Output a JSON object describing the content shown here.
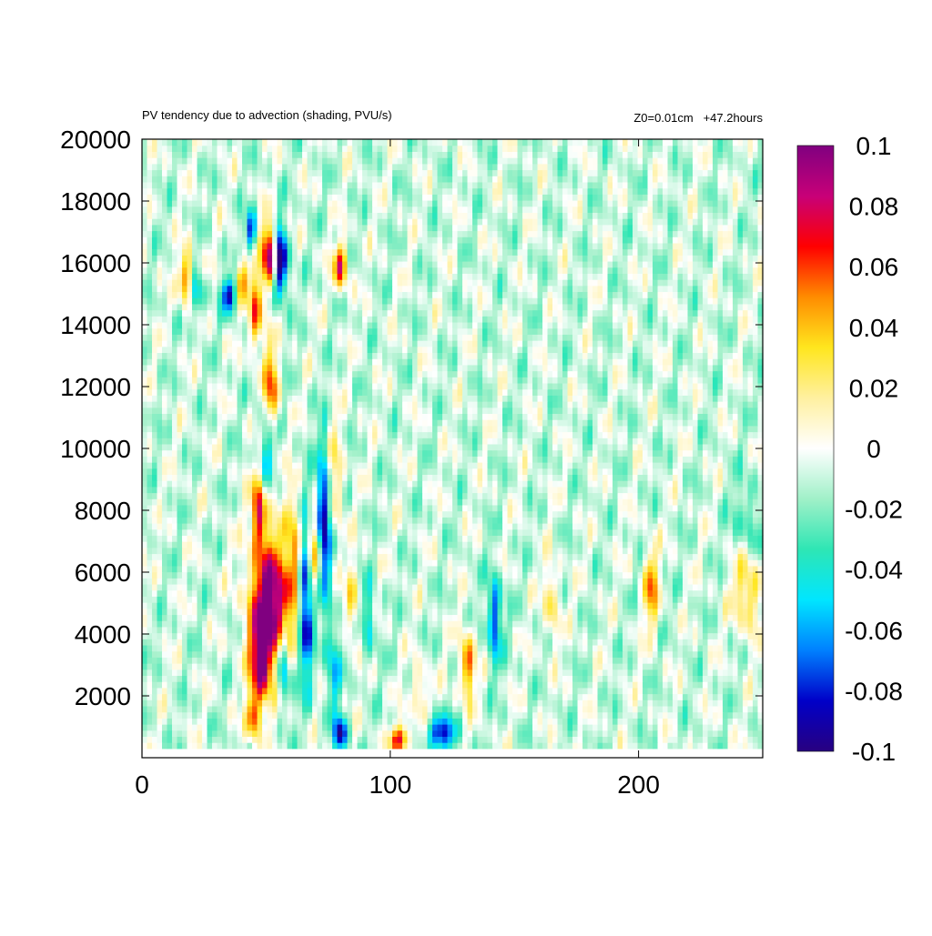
{
  "chart_data": {
    "type": "heatmap",
    "title": "PV tendency due to advection (shading, PVU/s)",
    "subtitle": "Z0=0.01cm   +47.2hours",
    "xlabel": "",
    "ylabel": "",
    "xlim": [
      0,
      250
    ],
    "ylim": [
      300,
      20000
    ],
    "x_ticks": [
      {
        "value": 0,
        "label": "0"
      },
      {
        "value": 100,
        "label": "100"
      },
      {
        "value": 200,
        "label": "200"
      }
    ],
    "y_ticks": [
      {
        "value": 2000,
        "label": "2000"
      },
      {
        "value": 4000,
        "label": "4000"
      },
      {
        "value": 6000,
        "label": "6000"
      },
      {
        "value": 8000,
        "label": "8000"
      },
      {
        "value": 10000,
        "label": "10000"
      },
      {
        "value": 12000,
        "label": "12000"
      },
      {
        "value": 14000,
        "label": "14000"
      },
      {
        "value": 16000,
        "label": "16000"
      },
      {
        "value": 18000,
        "label": "18000"
      },
      {
        "value": 20000,
        "label": "20000"
      }
    ],
    "colorbar": {
      "range": [
        -0.1,
        0.1
      ],
      "ticks": [
        {
          "value": 0.1,
          "label": "0.1"
        },
        {
          "value": 0.08,
          "label": "0.08"
        },
        {
          "value": 0.06,
          "label": "0.06"
        },
        {
          "value": 0.04,
          "label": "0.04"
        },
        {
          "value": 0.02,
          "label": "0.02"
        },
        {
          "value": 0,
          "label": "0"
        },
        {
          "value": -0.02,
          "label": "-0.02"
        },
        {
          "value": -0.04,
          "label": "-0.04"
        },
        {
          "value": -0.06,
          "label": "-0.06"
        },
        {
          "value": -0.08,
          "label": "-0.08"
        },
        {
          "value": -0.1,
          "label": "-0.1"
        }
      ],
      "colors": [
        "#280080",
        "#0000c8",
        "#0080ff",
        "#00e6ff",
        "#2ee6b4",
        "#a0f0c8",
        "#ffffff",
        "#fff0a0",
        "#ffe61e",
        "#ff8c00",
        "#ff0000",
        "#c80078",
        "#800080"
      ]
    },
    "grid": false,
    "features": [
      {
        "x": 52,
        "y": 5000,
        "value": 0.12,
        "sx": 6,
        "sy": 1400
      },
      {
        "x": 48,
        "y": 3000,
        "value": 0.09,
        "sx": 3,
        "sy": 900
      },
      {
        "x": 45,
        "y": 1300,
        "value": 0.07,
        "sx": 2,
        "sy": 500
      },
      {
        "x": 51,
        "y": 16300,
        "value": 0.11,
        "sx": 2,
        "sy": 700
      },
      {
        "x": 56,
        "y": 16000,
        "value": -0.1,
        "sx": 2,
        "sy": 800
      },
      {
        "x": 46,
        "y": 14500,
        "value": 0.07,
        "sx": 2,
        "sy": 900
      },
      {
        "x": 52,
        "y": 12000,
        "value": 0.07,
        "sx": 2,
        "sy": 900
      },
      {
        "x": 50,
        "y": 10000,
        "value": -0.04,
        "sx": 2,
        "sy": 900
      },
      {
        "x": 47,
        "y": 8000,
        "value": 0.09,
        "sx": 2,
        "sy": 800
      },
      {
        "x": 73,
        "y": 7500,
        "value": -0.1,
        "sx": 2,
        "sy": 1700
      },
      {
        "x": 70,
        "y": 6500,
        "value": 0.07,
        "sx": 2,
        "sy": 1000
      },
      {
        "x": 66,
        "y": 5000,
        "value": -0.09,
        "sx": 2,
        "sy": 1800
      },
      {
        "x": 61,
        "y": 7000,
        "value": 0.05,
        "sx": 2,
        "sy": 1200
      },
      {
        "x": 57,
        "y": 3000,
        "value": -0.07,
        "sx": 2,
        "sy": 800
      },
      {
        "x": 77,
        "y": 3000,
        "value": -0.05,
        "sx": 2,
        "sy": 1000
      },
      {
        "x": 80,
        "y": 15900,
        "value": 0.08,
        "sx": 2,
        "sy": 500
      },
      {
        "x": 18,
        "y": 15500,
        "value": 0.07,
        "sx": 2,
        "sy": 600
      },
      {
        "x": 22,
        "y": 15000,
        "value": -0.05,
        "sx": 2,
        "sy": 500
      },
      {
        "x": 35,
        "y": 15000,
        "value": -0.08,
        "sx": 2,
        "sy": 400
      },
      {
        "x": 44,
        "y": 17000,
        "value": -0.07,
        "sx": 1.5,
        "sy": 500
      },
      {
        "x": 40,
        "y": 15500,
        "value": 0.05,
        "sx": 2,
        "sy": 500
      },
      {
        "x": 131,
        "y": 3000,
        "value": 0.07,
        "sx": 2,
        "sy": 800
      },
      {
        "x": 104,
        "y": 600,
        "value": 0.08,
        "sx": 3,
        "sy": 300
      },
      {
        "x": 120,
        "y": 800,
        "value": -0.08,
        "sx": 4,
        "sy": 400
      },
      {
        "x": 80,
        "y": 800,
        "value": -0.08,
        "sx": 2,
        "sy": 400
      },
      {
        "x": 142,
        "y": 4500,
        "value": -0.07,
        "sx": 2,
        "sy": 1000
      },
      {
        "x": 205,
        "y": 5500,
        "value": 0.06,
        "sx": 2,
        "sy": 900
      },
      {
        "x": 244,
        "y": 5500,
        "value": 0.05,
        "sx": 4,
        "sy": 1000
      },
      {
        "x": 244,
        "y": 7500,
        "value": -0.03,
        "sx": 4,
        "sy": 1000
      },
      {
        "x": 85,
        "y": 5000,
        "value": 0.04,
        "sx": 2,
        "sy": 900
      },
      {
        "x": 91,
        "y": 4500,
        "value": -0.04,
        "sx": 2,
        "sy": 900
      },
      {
        "x": 78,
        "y": 9000,
        "value": 0.04,
        "sx": 2,
        "sy": 1200
      },
      {
        "x": 112,
        "y": 2000,
        "value": 0.04,
        "sx": 2,
        "sy": 700
      },
      {
        "x": 165,
        "y": 5000,
        "value": 0.04,
        "sx": 2,
        "sy": 900
      }
    ]
  }
}
